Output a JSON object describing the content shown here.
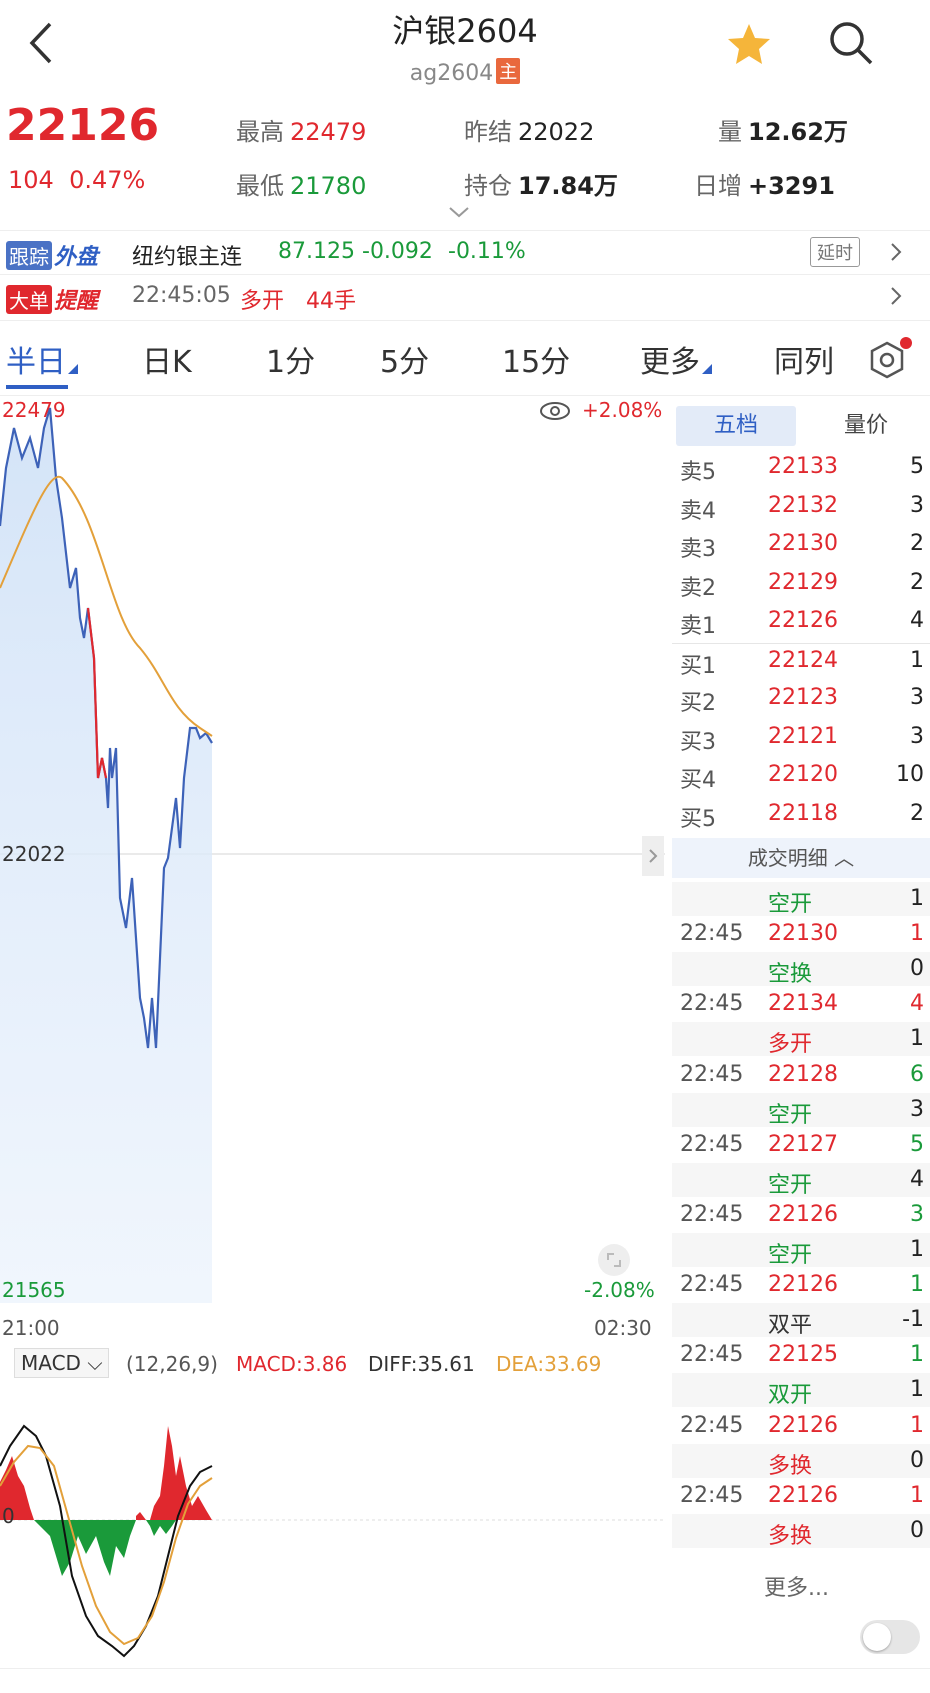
{
  "header": {
    "title": "沪银2604",
    "code": "ag2604",
    "main_badge": "主"
  },
  "quote": {
    "price": "22126",
    "change": "104",
    "change_pct": "0.47%",
    "high_label": "最高",
    "high": "22479",
    "low_label": "最低",
    "low": "21780",
    "prev_settle_label": "昨结",
    "prev_settle": "22022",
    "open_interest_label": "持仓",
    "open_interest": "17.84万",
    "volume_label": "量",
    "volume": "12.62万",
    "daily_inc_label": "日增",
    "daily_inc": "+3291"
  },
  "track_row": {
    "tag": "跟踪",
    "tag_text": "外盘",
    "name": "纽约银主连",
    "price": "87.125",
    "change": "-0.092",
    "change_pct": "-0.11%",
    "delay_label": "延时"
  },
  "alert_row": {
    "tag": "大单",
    "tag_text": "提醒",
    "time": "22:45:05",
    "action": "多开",
    "lots": "44手"
  },
  "tabs": [
    "半日",
    "日K",
    "1分",
    "5分",
    "15分",
    "更多",
    "同列"
  ],
  "chart": {
    "top_price": "22479",
    "mid_price": "22022",
    "bottom_price": "21565",
    "top_pct": "+2.08%",
    "bottom_pct": "-2.08%",
    "start_time": "21:00",
    "end_time": "02:30"
  },
  "macd": {
    "select": "MACD",
    "params": "(12,26,9)",
    "macd": "MACD:3.86",
    "diff": "DIFF:35.61",
    "dea": "DEA:33.69",
    "zero": "0"
  },
  "side": {
    "tab_a": "五档",
    "tab_b": "量价",
    "sells": [
      {
        "label": "卖5",
        "price": "22133",
        "qty": "5"
      },
      {
        "label": "卖4",
        "price": "22132",
        "qty": "3"
      },
      {
        "label": "卖3",
        "price": "22130",
        "qty": "2"
      },
      {
        "label": "卖2",
        "price": "22129",
        "qty": "2"
      },
      {
        "label": "卖1",
        "price": "22126",
        "qty": "4"
      }
    ],
    "buys": [
      {
        "label": "买1",
        "price": "22124",
        "qty": "1"
      },
      {
        "label": "买2",
        "price": "22123",
        "qty": "3"
      },
      {
        "label": "买3",
        "price": "22121",
        "qty": "3"
      },
      {
        "label": "买4",
        "price": "22120",
        "qty": "10"
      },
      {
        "label": "买5",
        "price": "22118",
        "qty": "2"
      }
    ],
    "deal_header": "成交明细",
    "trades": [
      {
        "time": "",
        "text": "空开",
        "qty": "1",
        "kind": "green"
      },
      {
        "time": "22:45",
        "text": "22130",
        "qty": "1",
        "kind": "red"
      },
      {
        "time": "",
        "text": "空换",
        "qty": "0",
        "kind": "green"
      },
      {
        "time": "22:45",
        "text": "22134",
        "qty": "4",
        "kind": "red"
      },
      {
        "time": "",
        "text": "多开",
        "qty": "1",
        "kind": "red"
      },
      {
        "time": "22:45",
        "text": "22128",
        "qty": "6",
        "kind": "redg"
      },
      {
        "time": "",
        "text": "空开",
        "qty": "3",
        "kind": "green"
      },
      {
        "time": "22:45",
        "text": "22127",
        "qty": "5",
        "kind": "redg"
      },
      {
        "time": "",
        "text": "空开",
        "qty": "4",
        "kind": "green"
      },
      {
        "time": "22:45",
        "text": "22126",
        "qty": "3",
        "kind": "redg"
      },
      {
        "time": "",
        "text": "空开",
        "qty": "1",
        "kind": "green"
      },
      {
        "time": "22:45",
        "text": "22126",
        "qty": "1",
        "kind": "redg"
      },
      {
        "time": "",
        "text": "双平",
        "qty": "-1",
        "kind": "dark"
      },
      {
        "time": "22:45",
        "text": "22125",
        "qty": "1",
        "kind": "redg"
      },
      {
        "time": "",
        "text": "双开",
        "qty": "1",
        "kind": "green"
      },
      {
        "time": "22:45",
        "text": "22126",
        "qty": "1",
        "kind": "red"
      },
      {
        "time": "",
        "text": "多换",
        "qty": "0",
        "kind": "red"
      },
      {
        "time": "22:45",
        "text": "22126",
        "qty": "1",
        "kind": "red"
      },
      {
        "time": "",
        "text": "多换",
        "qty": "0",
        "kind": "red"
      }
    ],
    "more": "更多..."
  },
  "colors": {
    "up": "#e0282e",
    "down": "#1a9a3a",
    "accent": "#2f5fc4",
    "avg_line": "#e3a03a"
  }
}
